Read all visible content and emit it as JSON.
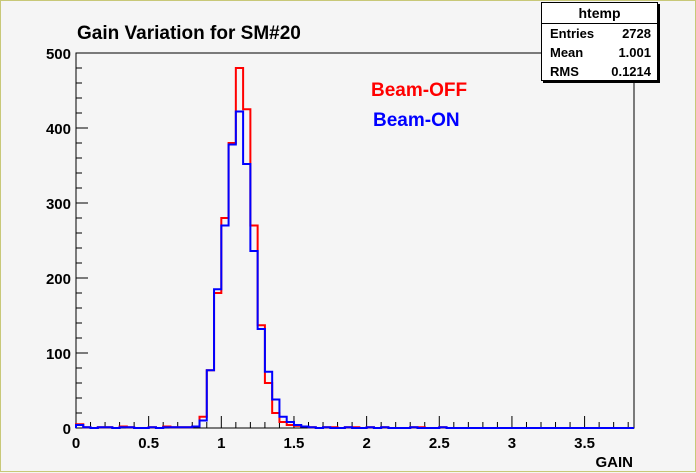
{
  "chart_data": {
    "type": "step-histogram",
    "title": "Gain Variation for SM#20",
    "xlabel": "GAIN",
    "ylabel": "",
    "xlim": [
      0,
      3.84
    ],
    "ylim": [
      0,
      500
    ],
    "x_ticks": [
      "0",
      "0.5",
      "1",
      "1.5",
      "2",
      "2.5",
      "3",
      "3.5"
    ],
    "y_ticks": [
      "0",
      "100",
      "200",
      "300",
      "400",
      "500"
    ],
    "bin_width": 0.05,
    "x_start": 0.0,
    "series": [
      {
        "name": "Beam-OFF",
        "color": "#ff0000",
        "values": [
          5,
          1,
          0,
          1,
          1,
          0,
          2,
          1,
          0,
          0,
          1,
          0,
          2,
          1,
          1,
          1,
          2,
          15,
          77,
          180,
          280,
          380,
          480,
          425,
          270,
          137,
          60,
          20,
          8,
          4,
          3,
          2,
          1,
          0,
          1,
          1,
          0,
          1,
          1,
          0,
          1,
          0,
          1,
          0,
          0,
          0,
          1,
          1,
          0,
          0,
          1,
          0,
          0,
          0,
          0,
          0,
          0,
          0,
          0,
          0,
          0,
          0,
          0,
          0,
          0,
          0,
          0,
          0,
          0,
          0,
          0,
          0,
          0,
          0,
          0,
          0,
          0
        ]
      },
      {
        "name": "Beam-ON",
        "color": "#0000ff",
        "values": [
          4,
          1,
          0,
          1,
          1,
          0,
          1,
          1,
          0,
          0,
          1,
          0,
          1,
          1,
          1,
          1,
          2,
          10,
          77,
          185,
          270,
          378,
          422,
          352,
          236,
          132,
          75,
          38,
          15,
          8,
          4,
          2,
          1,
          0,
          1,
          0,
          0,
          1,
          0,
          0,
          1,
          0,
          1,
          0,
          0,
          0,
          1,
          0,
          0,
          0,
          1,
          0,
          0,
          0,
          0,
          0,
          0,
          0,
          0,
          0,
          0,
          0,
          0,
          0,
          0,
          0,
          0,
          0,
          0,
          0,
          0,
          0,
          0,
          0,
          0,
          0,
          0
        ]
      }
    ],
    "legend": [
      {
        "label": "Beam-OFF",
        "color": "#ff0000"
      },
      {
        "label": "Beam-ON",
        "color": "#0000ff"
      }
    ]
  },
  "stats": {
    "title": "htemp",
    "rows": [
      {
        "label": "Entries",
        "value": "2728"
      },
      {
        "label": "Mean",
        "value": "1.001"
      },
      {
        "label": "RMS",
        "value": "0.1214"
      }
    ]
  }
}
